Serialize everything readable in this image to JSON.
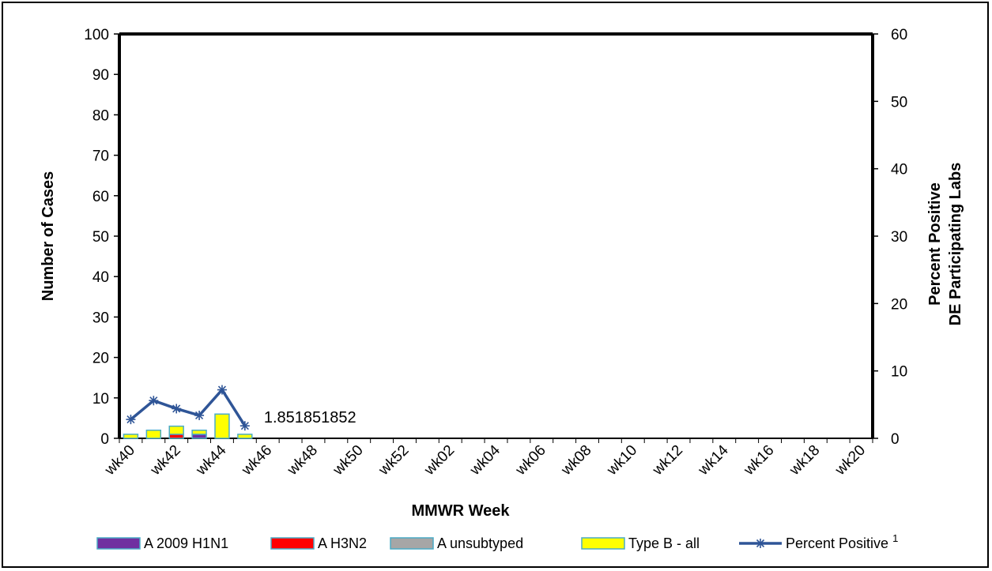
{
  "chart_data": {
    "type": "bar",
    "stacked": true,
    "title": "",
    "xlabel": "MMWR Week",
    "ylabel": "Number of Cases",
    "y2label_lines": [
      "Percent Positive",
      "DE Participating Labs"
    ],
    "ylim": [
      0,
      100
    ],
    "yticks": [
      0,
      10,
      20,
      30,
      40,
      50,
      60,
      70,
      80,
      90,
      100
    ],
    "y2lim": [
      0,
      60
    ],
    "y2ticks": [
      0,
      10,
      20,
      30,
      40,
      50,
      60
    ],
    "x_tick_labels": [
      "wk40",
      "wk42",
      "wk44",
      "wk46",
      "wk48",
      "wk50",
      "wk52",
      "wk02",
      "wk04",
      "wk06",
      "wk08",
      "wk10",
      "wk12",
      "wk14",
      "wk16",
      "wk18",
      "wk20"
    ],
    "n_categories": 33,
    "categories": [
      "wk40",
      "wk41",
      "wk42",
      "wk43",
      "wk44",
      "wk45"
    ],
    "series": [
      {
        "name": "A 2009 H1N1",
        "color": "#7030A0",
        "values": [
          0,
          0,
          0,
          1,
          0,
          0
        ]
      },
      {
        "name": "A H3N2",
        "color": "#FF0000",
        "values": [
          0,
          0,
          1,
          0,
          0,
          0
        ]
      },
      {
        "name": "A unsubtyped",
        "color": "#A6A6A6",
        "values": [
          0,
          0,
          0,
          0,
          0,
          0
        ]
      },
      {
        "name": "Type B - all",
        "color": "#FFFF00",
        "values": [
          1,
          2,
          2,
          1,
          6,
          1
        ]
      }
    ],
    "line_series": {
      "name": "Percent Positive",
      "superscript": "1",
      "color": "#2F5597",
      "axis": "right",
      "values": [
        2.8,
        5.6,
        4.4,
        3.4,
        7.2,
        1.851851852
      ]
    },
    "annotation": {
      "text": "1.851851852",
      "category_index": 5
    },
    "legend_position": "bottom",
    "grid": false
  }
}
